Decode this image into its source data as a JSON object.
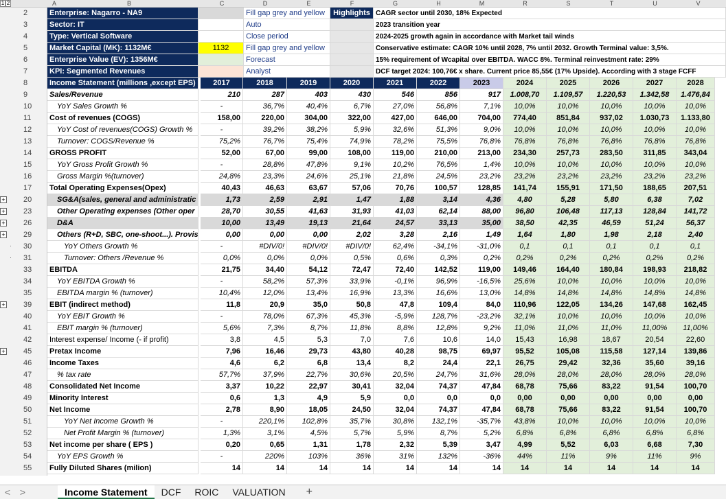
{
  "level_buttons": [
    "1",
    "2"
  ],
  "columns": [
    "A",
    "B",
    "C",
    "D",
    "E",
    "F",
    "G",
    "H",
    "M",
    "R",
    "S",
    "T",
    "U",
    "V"
  ],
  "legend": {
    "fill_grey": "Fill gap grey and yellow",
    "auto": "Auto",
    "close": "Close period",
    "fill_grey2": "Fill gap grey and yellow",
    "forecast": "Forecast",
    "analyst": "Analyst",
    "highlights": "Highlights",
    "mc_value": "1132"
  },
  "notes": [
    "CAGR sector until 2030, 18% Expected",
    "2023 transition year",
    "2024-2025 growth again in accordance with Market tail winds",
    "Conservative estimate: CAGR 10% until 2028, 7% until 2032. Growth Terminal value: 3,5%.",
    "15% requirement of Wcapital over EBITDA. WACC 8%. Terminal reinvestment rate: 29%",
    "DCF target 2024: 100,76€ x share. Current price 85,55€ (17% Upside). According with 3 stage FCFF"
  ],
  "header_rows": [
    {
      "n": "2",
      "label": "Enterprise: Nagarro - NA9"
    },
    {
      "n": "3",
      "label": "Sector: IT"
    },
    {
      "n": "4",
      "label": "Type: Vertical Software"
    },
    {
      "n": "5",
      "label": "Market Capital (MK): 1132M€"
    },
    {
      "n": "6",
      "label": "Enterprise Value (EV): 1356M€"
    },
    {
      "n": "7",
      "label": "KPI: Segmented Revenues"
    }
  ],
  "years_label": "Income Statement (millions ,except EPS)",
  "years": [
    "2017",
    "2018",
    "2019",
    "2020",
    "2021",
    "2022",
    "2023",
    "2024",
    "2025",
    "2026",
    "2027",
    "2028"
  ],
  "rows": [
    {
      "n": "9",
      "label": "Sales/Revenue",
      "s": "bi",
      "v": [
        "210",
        "287",
        "403",
        "430",
        "546",
        "856",
        "917",
        "1.008,70",
        "1.109,57",
        "1.220,53",
        "1.342,58",
        "1.476,84"
      ]
    },
    {
      "n": "10",
      "label": "YoY Sales Growth %",
      "s": "ind i",
      "v": [
        "",
        "36,7%",
        "40,4%",
        "6,7%",
        "27,0%",
        "56,8%",
        "7,1%",
        "10,0%",
        "10,0%",
        "10,0%",
        "10,0%",
        "10,0%"
      ]
    },
    {
      "n": "11",
      "label": "Cost of revenues (COGS)",
      "s": "b",
      "v": [
        "158,00",
        "220,00",
        "304,00",
        "322,00",
        "427,00",
        "646,00",
        "704,00",
        "774,40",
        "851,84",
        "937,02",
        "1.030,73",
        "1.133,80"
      ]
    },
    {
      "n": "12",
      "label": "YoY Cost of revenues(COGS) Growth %",
      "s": "ind i",
      "v": [
        "",
        "39,2%",
        "38,2%",
        "5,9%",
        "32,6%",
        "51,3%",
        "9,0%",
        "10,0%",
        "10,0%",
        "10,0%",
        "10,0%",
        "10,0%"
      ]
    },
    {
      "n": "13",
      "label": "Turnover: COGS/Revenue %",
      "s": "ind i",
      "v": [
        "75,2%",
        "76,7%",
        "75,4%",
        "74,9%",
        "78,2%",
        "75,5%",
        "76,8%",
        "76,8%",
        "76,8%",
        "76,8%",
        "76,8%",
        "76,8%"
      ]
    },
    {
      "n": "14",
      "label": "GROSS PROFIT",
      "s": "b",
      "v": [
        "52,00",
        "67,00",
        "99,00",
        "108,00",
        "119,00",
        "210,00",
        "213,00",
        "234,30",
        "257,73",
        "283,50",
        "311,85",
        "343,04"
      ]
    },
    {
      "n": "15",
      "label": "YoY Gross Profit Growth %",
      "s": "ind i",
      "v": [
        "",
        "28,8%",
        "47,8%",
        "9,1%",
        "10,2%",
        "76,5%",
        "1,4%",
        "10,0%",
        "10,0%",
        "10,0%",
        "10,0%",
        "10,0%"
      ]
    },
    {
      "n": "16",
      "label": "Gross Margin %(turnover)",
      "s": "ind i",
      "v": [
        "24,8%",
        "23,3%",
        "24,6%",
        "25,1%",
        "21,8%",
        "24,5%",
        "23,2%",
        "23,2%",
        "23,2%",
        "23,2%",
        "23,2%",
        "23,2%"
      ]
    },
    {
      "n": "17",
      "label": "Total Operating Expenses(Opex)",
      "s": "b",
      "v": [
        "40,43",
        "46,63",
        "63,67",
        "57,06",
        "70,76",
        "100,57",
        "128,85",
        "141,74",
        "155,91",
        "171,50",
        "188,65",
        "207,51"
      ]
    },
    {
      "n": "20",
      "label": "SG&A(sales, general and administratic",
      "s": "bi ind grey",
      "v": [
        "1,73",
        "2,59",
        "2,91",
        "1,47",
        "1,88",
        "3,14",
        "4,36",
        "4,80",
        "5,28",
        "5,80",
        "6,38",
        "7,02"
      ]
    },
    {
      "n": "23",
      "label": "Other Operating expenses (Other oper",
      "s": "bi ind",
      "v": [
        "28,70",
        "30,55",
        "41,63",
        "31,93",
        "41,03",
        "62,14",
        "88,00",
        "96,80",
        "106,48",
        "117,13",
        "128,84",
        "141,72"
      ]
    },
    {
      "n": "26",
      "label": "D&A",
      "s": "b ind grey",
      "v": [
        "10,00",
        "13,49",
        "19,13",
        "21,64",
        "24,57",
        "33,13",
        "35,00",
        "38,50",
        "42,35",
        "46,59",
        "51,24",
        "56,37"
      ]
    },
    {
      "n": "29",
      "label": "Others (R+D, SBC, one-shoot...). Provisi",
      "s": "bi ind",
      "v": [
        "0,00",
        "0,00",
        "0,00",
        "2,02",
        "3,28",
        "2,16",
        "1,49",
        "1,64",
        "1,80",
        "1,98",
        "2,18",
        "2,40"
      ]
    },
    {
      "n": "30",
      "label": "YoY Others Growth %",
      "s": "ind2 i",
      "v": [
        "",
        "#DIV/0!",
        "#DIV/0!",
        "#DIV/0!",
        "62,4%",
        "-34,1%",
        "-31,0%",
        "0,1",
        "0,1",
        "0,1",
        "0,1",
        "0,1"
      ]
    },
    {
      "n": "31",
      "label": "Turnover: Others /Revenue %",
      "s": "ind2 i",
      "v": [
        "0,0%",
        "0,0%",
        "0,0%",
        "0,5%",
        "0,6%",
        "0,3%",
        "0,2%",
        "0,2%",
        "0,2%",
        "0,2%",
        "0,2%",
        "0,2%"
      ]
    },
    {
      "n": "33",
      "label": "EBITDA",
      "s": "b",
      "v": [
        "21,75",
        "34,40",
        "54,12",
        "72,47",
        "72,40",
        "142,52",
        "119,00",
        "149,46",
        "164,40",
        "180,84",
        "198,93",
        "218,82"
      ]
    },
    {
      "n": "34",
      "label": "YoY EBITDA Growth %",
      "s": "ind i",
      "v": [
        "",
        "58,2%",
        "57,3%",
        "33,9%",
        "-0,1%",
        "96,9%",
        "-16,5%",
        "25,6%",
        "10,0%",
        "10,0%",
        "10,0%",
        "10,0%"
      ]
    },
    {
      "n": "35",
      "label": "EBITDA margin % (turnover)",
      "s": "ind i",
      "v": [
        "10,4%",
        "12,0%",
        "13,4%",
        "16,9%",
        "13,3%",
        "16,6%",
        "13,0%",
        "14,8%",
        "14,8%",
        "14,8%",
        "14,8%",
        "14,8%"
      ]
    },
    {
      "n": "39",
      "label": "EBIT (indirect method)",
      "s": "b",
      "v": [
        "11,8",
        "20,9",
        "35,0",
        "50,8",
        "47,8",
        "109,4",
        "84,0",
        "110,96",
        "122,05",
        "134,26",
        "147,68",
        "162,45"
      ]
    },
    {
      "n": "40",
      "label": "YoY EBIT Growth %",
      "s": "ind i",
      "v": [
        "",
        "78,0%",
        "67,3%",
        "45,3%",
        "-5,9%",
        "128,7%",
        "-23,2%",
        "32,1%",
        "10,0%",
        "10,0%",
        "10,0%",
        "10,0%"
      ]
    },
    {
      "n": "41",
      "label": "EBIT margin % (turnover)",
      "s": "ind i",
      "v": [
        "5,6%",
        "7,3%",
        "8,7%",
        "11,8%",
        "8,8%",
        "12,8%",
        "9,2%",
        "11,0%",
        "11,0%",
        "11,0%",
        "11,00%",
        "11,00%"
      ]
    },
    {
      "n": "42",
      "label": "Interest expense/ Income (- if profit)",
      "s": "",
      "v": [
        "3,8",
        "4,5",
        "5,3",
        "7,0",
        "7,6",
        "10,6",
        "14,0",
        "15,43",
        "16,98",
        "18,67",
        "20,54",
        "22,60"
      ]
    },
    {
      "n": "45",
      "label": "Pretax Income",
      "s": "b",
      "v": [
        "7,96",
        "16,46",
        "29,73",
        "43,80",
        "40,28",
        "98,75",
        "69,97",
        "95,52",
        "105,08",
        "115,58",
        "127,14",
        "139,86"
      ]
    },
    {
      "n": "46",
      "label": "Income Taxes",
      "s": "b",
      "v": [
        "4,6",
        "6,2",
        "6,8",
        "13,4",
        "8,2",
        "24,4",
        "22,1",
        "26,75",
        "29,42",
        "32,36",
        "35,60",
        "39,16"
      ]
    },
    {
      "n": "47",
      "label": "% tax rate",
      "s": "ind i",
      "v": [
        "57,7%",
        "37,9%",
        "22,7%",
        "30,6%",
        "20,5%",
        "24,7%",
        "31,6%",
        "28,0%",
        "28,0%",
        "28,0%",
        "28,0%",
        "28,0%"
      ]
    },
    {
      "n": "48",
      "label": "Consolidated Net Income",
      "s": "b",
      "v": [
        "3,37",
        "10,22",
        "22,97",
        "30,41",
        "32,04",
        "74,37",
        "47,84",
        "68,78",
        "75,66",
        "83,22",
        "91,54",
        "100,70"
      ]
    },
    {
      "n": "49",
      "label": "Minority Interest",
      "s": "b",
      "v": [
        "0,6",
        "1,3",
        "4,9",
        "5,9",
        "0,0",
        "0,0",
        "0,0",
        "0,00",
        "0,00",
        "0,00",
        "0,00",
        "0,00"
      ]
    },
    {
      "n": "50",
      "label": "Net Income",
      "s": "b",
      "v": [
        "2,78",
        "8,90",
        "18,05",
        "24,50",
        "32,04",
        "74,37",
        "47,84",
        "68,78",
        "75,66",
        "83,22",
        "91,54",
        "100,70"
      ]
    },
    {
      "n": "51",
      "label": "YoY Net Income Growth %",
      "s": "ind2 i",
      "v": [
        "",
        "220,1%",
        "102,8%",
        "35,7%",
        "30,8%",
        "132,1%",
        "-35,7%",
        "43,8%",
        "10,0%",
        "10,0%",
        "10,0%",
        "10,0%"
      ]
    },
    {
      "n": "52",
      "label": "Net Profit Margin % (turnover)",
      "s": "ind2 i",
      "v": [
        "1,3%",
        "3,1%",
        "4,5%",
        "5,7%",
        "5,9%",
        "8,7%",
        "5,2%",
        "6,8%",
        "6,8%",
        "6,8%",
        "6,8%",
        "6,8%"
      ]
    },
    {
      "n": "53",
      "label": "Net income per share ( EPS )",
      "s": "b",
      "v": [
        "0,20",
        "0,65",
        "1,31",
        "1,78",
        "2,32",
        "5,39",
        "3,47",
        "4,99",
        "5,52",
        "6,03",
        "6,68",
        "7,30"
      ]
    },
    {
      "n": "54",
      "label": "YoY EPS Growth %",
      "s": "ind i",
      "v": [
        "",
        "220%",
        "103%",
        "36%",
        "31%",
        "132%",
        "-36%",
        "44%",
        "11%",
        "9%",
        "11%",
        "9%"
      ]
    },
    {
      "n": "55",
      "label": "Fully Diluted Shares (milion)",
      "s": "b",
      "v": [
        "14",
        "14",
        "14",
        "14",
        "14",
        "14",
        "14",
        "14",
        "14",
        "14",
        "14",
        "14"
      ]
    }
  ],
  "tabs": [
    "Income Statement",
    "DCF",
    "ROIC",
    "VALUATION"
  ],
  "add_sheet": "+",
  "nav_prev": "<",
  "nav_next": ">",
  "colors": {
    "navy": "#0e2a5c",
    "green": "#e2efda",
    "grey": "#d9d9d9",
    "yellow": "#ffff00",
    "peach": "#fce4d6",
    "tab_accent": "#217346"
  }
}
